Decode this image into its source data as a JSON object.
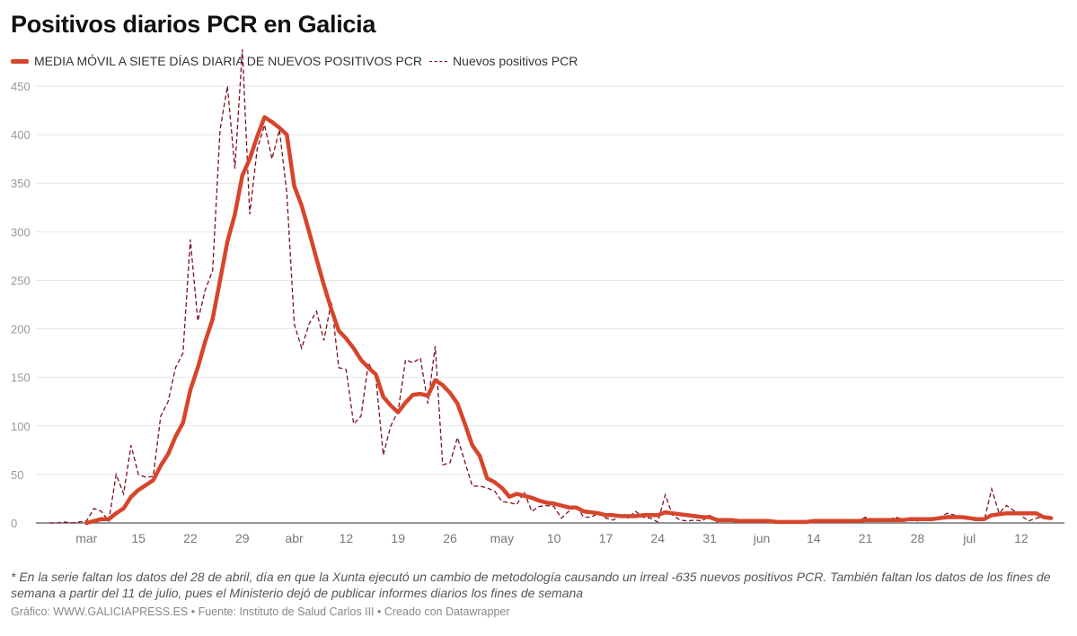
{
  "title": "Positivos diarios PCR en Galicia",
  "legend": [
    {
      "label": "MEDIA MÓVIL A SIETE DÍAS DIARIA DE NUEVOS POSITIVOS PCR",
      "style": "solid"
    },
    {
      "label": "Nuevos positivos PCR",
      "style": "dashed"
    }
  ],
  "colors": {
    "moving_average": "#d6452b",
    "daily": "#7a1020",
    "grid": "#e6e6e6",
    "baseline": "#555555"
  },
  "note": "* En la serie faltan los datos del 28 de abril, día en que la Xunta ejecutó un cambio de metodología causando un irreal -635 nuevos positivos PCR. También faltan los datos de los fines de semana a partir del 11 de julio, pues el Ministerio dejó de publicar informes diarios los fines de semana",
  "credits": "Gráfico: WWW.GALICIAPRESS.ES • Fuente: Instituto de Salud Carlos III • Creado con Datawrapper",
  "chart_data": {
    "type": "line",
    "title": "Positivos diarios PCR en Galicia",
    "xlabel": "",
    "ylabel": "",
    "ylim": [
      0,
      450
    ],
    "yticks": [
      0,
      50,
      100,
      150,
      200,
      250,
      300,
      350,
      400,
      450
    ],
    "grid": true,
    "legend_position": "top-left",
    "xticks": [
      {
        "date": "03-08",
        "label": "mar"
      },
      {
        "date": "03-15",
        "label": "15"
      },
      {
        "date": "03-22",
        "label": "22"
      },
      {
        "date": "03-29",
        "label": "29"
      },
      {
        "date": "04-05",
        "label": "abr"
      },
      {
        "date": "04-12",
        "label": "12"
      },
      {
        "date": "04-19",
        "label": "19"
      },
      {
        "date": "04-26",
        "label": "26"
      },
      {
        "date": "05-03",
        "label": "may"
      },
      {
        "date": "05-10",
        "label": "10"
      },
      {
        "date": "05-17",
        "label": "17"
      },
      {
        "date": "05-24",
        "label": "24"
      },
      {
        "date": "05-31",
        "label": "31"
      },
      {
        "date": "06-07",
        "label": "jun"
      },
      {
        "date": "06-14",
        "label": "14"
      },
      {
        "date": "06-21",
        "label": "21"
      },
      {
        "date": "06-28",
        "label": "28"
      },
      {
        "date": "07-05",
        "label": "jul"
      },
      {
        "date": "07-12",
        "label": "12"
      }
    ],
    "x": [
      "03-03",
      "03-04",
      "03-05",
      "03-06",
      "03-07",
      "03-08",
      "03-09",
      "03-10",
      "03-11",
      "03-12",
      "03-13",
      "03-14",
      "03-15",
      "03-16",
      "03-17",
      "03-18",
      "03-19",
      "03-20",
      "03-21",
      "03-22",
      "03-23",
      "03-24",
      "03-25",
      "03-26",
      "03-27",
      "03-28",
      "03-29",
      "03-30",
      "03-31",
      "04-01",
      "04-02",
      "04-03",
      "04-04",
      "04-05",
      "04-06",
      "04-07",
      "04-08",
      "04-09",
      "04-10",
      "04-11",
      "04-12",
      "04-13",
      "04-14",
      "04-15",
      "04-16",
      "04-17",
      "04-18",
      "04-19",
      "04-20",
      "04-21",
      "04-22",
      "04-23",
      "04-24",
      "04-25",
      "04-26",
      "04-27",
      "04-28",
      "04-29",
      "04-30",
      "05-01",
      "05-02",
      "05-03",
      "05-04",
      "05-05",
      "05-06",
      "05-07",
      "05-08",
      "05-09",
      "05-10",
      "05-11",
      "05-12",
      "05-13",
      "05-14",
      "05-15",
      "05-16",
      "05-17",
      "05-18",
      "05-19",
      "05-20",
      "05-21",
      "05-22",
      "05-23",
      "05-24",
      "05-25",
      "05-26",
      "05-27",
      "05-28",
      "05-29",
      "05-30",
      "05-31",
      "06-01",
      "06-02",
      "06-03",
      "06-04",
      "06-05",
      "06-06",
      "06-07",
      "06-08",
      "06-09",
      "06-10",
      "06-11",
      "06-12",
      "06-13",
      "06-14",
      "06-15",
      "06-16",
      "06-17",
      "06-18",
      "06-19",
      "06-20",
      "06-21",
      "06-22",
      "06-23",
      "06-24",
      "06-25",
      "06-26",
      "06-27",
      "06-28",
      "06-29",
      "06-30",
      "07-01",
      "07-02",
      "07-03",
      "07-04",
      "07-05",
      "07-06",
      "07-07",
      "07-08",
      "07-09",
      "07-10",
      "07-11",
      "07-12",
      "07-13",
      "07-14",
      "07-15",
      "07-16"
    ],
    "series": [
      {
        "name": "MEDIA MÓVIL A SIETE DÍAS DIARIA DE NUEVOS POSITIVOS PCR",
        "style": "solid",
        "values": [
          null,
          null,
          null,
          null,
          null,
          0,
          2,
          4,
          4,
          10,
          15,
          27,
          34,
          39,
          44,
          59,
          71,
          89,
          103,
          137,
          160,
          187,
          210,
          250,
          290,
          318,
          358,
          375,
          398,
          418,
          413,
          407,
          400,
          347,
          327,
          300,
          272,
          245,
          220,
          198,
          190,
          180,
          168,
          160,
          153,
          130,
          121,
          114,
          124,
          132,
          133,
          131,
          147,
          142,
          134,
          123,
          102,
          80,
          69,
          46,
          42,
          36,
          27,
          30,
          28,
          26,
          23,
          21,
          20,
          18,
          16,
          16,
          12,
          11,
          10,
          8,
          8,
          7,
          7,
          7,
          8,
          8,
          8,
          11,
          10,
          9,
          8,
          7,
          6,
          6,
          3,
          3,
          3,
          2,
          2,
          2,
          2,
          2,
          1,
          1,
          1,
          1,
          1,
          2,
          2,
          2,
          2,
          2,
          2,
          2,
          3,
          3,
          3,
          3,
          3,
          3,
          4,
          4,
          4,
          4,
          5,
          6,
          6,
          6,
          5,
          4,
          4,
          8,
          9,
          10,
          10,
          10,
          10,
          10,
          6,
          5
        ]
      },
      {
        "name": "Nuevos positivos PCR",
        "style": "dashed",
        "values": [
          0,
          0,
          1,
          0,
          1,
          2,
          15,
          12,
          2,
          50,
          30,
          80,
          50,
          47,
          48,
          110,
          125,
          160,
          175,
          292,
          208,
          240,
          260,
          405,
          450,
          365,
          488,
          318,
          385,
          410,
          375,
          405,
          340,
          205,
          180,
          205,
          218,
          188,
          228,
          160,
          158,
          102,
          110,
          165,
          150,
          70,
          100,
          115,
          168,
          165,
          170,
          123,
          182,
          60,
          62,
          88,
          null,
          38,
          38,
          36,
          33,
          22,
          21,
          19,
          32,
          12,
          17,
          18,
          17,
          5,
          12,
          18,
          6,
          6,
          10,
          5,
          3,
          8,
          5,
          12,
          6,
          5,
          1,
          29,
          8,
          3,
          2,
          3,
          2,
          8,
          1,
          2,
          3,
          2,
          1,
          2,
          2,
          1,
          2,
          2,
          1,
          2,
          2,
          1,
          2,
          2,
          1,
          2,
          2,
          2,
          6,
          1,
          2,
          3,
          6,
          4,
          5,
          2,
          4,
          4,
          6,
          10,
          8,
          6,
          4,
          2,
          3,
          35,
          10,
          18,
          null,
          null,
          2,
          5,
          6,
          5
        ]
      }
    ]
  }
}
